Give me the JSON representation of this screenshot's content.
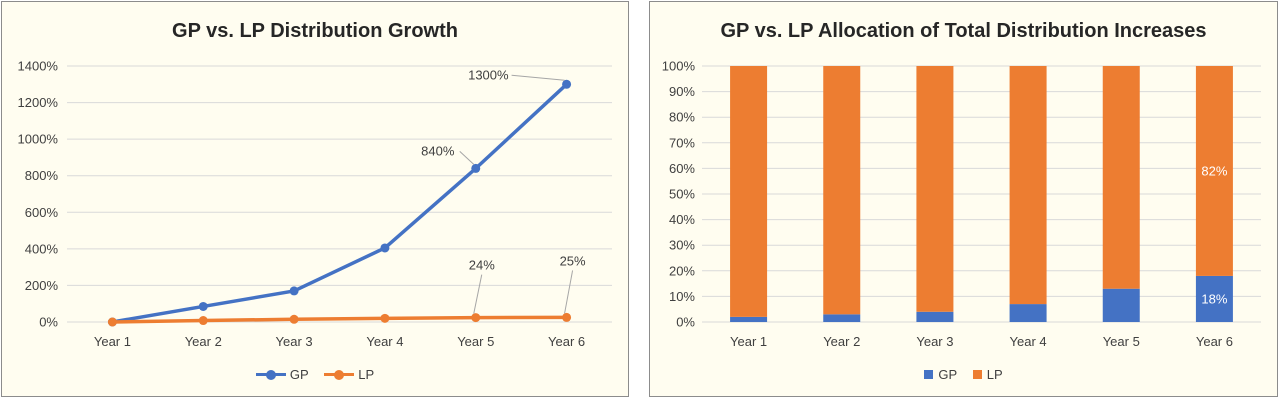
{
  "chart_data": [
    {
      "type": "line",
      "title": "GP vs. LP Distribution Growth",
      "categories": [
        "Year 1",
        "Year 2",
        "Year 3",
        "Year 4",
        "Year 5",
        "Year 6"
      ],
      "ylim": [
        0,
        1400
      ],
      "yticks": [
        "0%",
        "200%",
        "400%",
        "600%",
        "800%",
        "1000%",
        "1200%",
        "1400%"
      ],
      "grid": true,
      "legend": "bottom",
      "series": [
        {
          "name": "GP",
          "color": "#4472c4",
          "values": [
            0,
            85,
            170,
            405,
            840,
            1300
          ]
        },
        {
          "name": "LP",
          "color": "#ed7d31",
          "values": [
            0,
            8,
            15,
            20,
            24,
            25
          ]
        }
      ],
      "annotations": [
        {
          "series": "GP",
          "category": "Year 5",
          "text": "840%"
        },
        {
          "series": "GP",
          "category": "Year 6",
          "text": "1300%"
        },
        {
          "series": "LP",
          "category": "Year 5",
          "text": "24%"
        },
        {
          "series": "LP",
          "category": "Year 6",
          "text": "25%"
        }
      ]
    },
    {
      "type": "bar",
      "stacked": true,
      "title": "GP vs. LP Allocation of Total Distribution Increases",
      "categories": [
        "Year 1",
        "Year 2",
        "Year 3",
        "Year 4",
        "Year 5",
        "Year 6"
      ],
      "ylim": [
        0,
        100
      ],
      "yticks": [
        "0%",
        "10%",
        "20%",
        "30%",
        "40%",
        "50%",
        "60%",
        "70%",
        "80%",
        "90%",
        "100%"
      ],
      "grid": true,
      "legend": "bottom",
      "series": [
        {
          "name": "GP",
          "color": "#4472c4",
          "values": [
            2,
            3,
            4,
            7,
            13,
            18
          ]
        },
        {
          "name": "LP",
          "color": "#ed7d31",
          "values": [
            98,
            97,
            96,
            93,
            87,
            82
          ]
        }
      ],
      "annotations": [
        {
          "series": "GP",
          "category": "Year 6",
          "text": "18%"
        },
        {
          "series": "LP",
          "category": "Year 6",
          "text": "82%"
        }
      ]
    }
  ]
}
